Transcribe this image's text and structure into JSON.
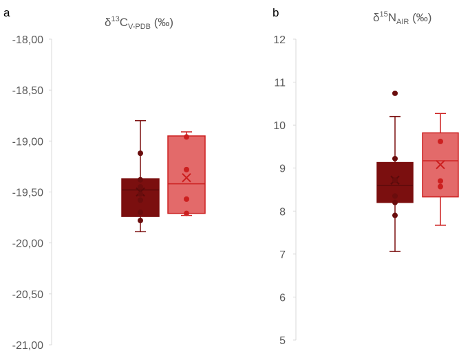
{
  "chart_data": [
    {
      "type": "box",
      "panel_label": "a",
      "title": {
        "main": "δ",
        "sup": "13",
        "element": "C",
        "sub": "V-PDB",
        "unit": " (‰)"
      },
      "ylim": [
        -21.0,
        -18.0
      ],
      "yticks": [
        "-18,00",
        "-18,50",
        "-19,00",
        "-19,50",
        "-20,00",
        "-20,50",
        "-21,00"
      ],
      "ytick_values": [
        -18.0,
        -18.5,
        -19.0,
        -19.5,
        -20.0,
        -20.5,
        -21.0
      ],
      "grid": false,
      "legend": "none",
      "series": [
        {
          "color": "#7b0f0f",
          "min": -19.89,
          "q1": -19.74,
          "median": -19.48,
          "q3": -19.37,
          "max": -18.8,
          "mean": -19.5,
          "points": [
            -19.12,
            -19.38,
            -19.45,
            -19.52,
            -19.58,
            -19.7,
            -19.78
          ]
        },
        {
          "color": "#e36a6a",
          "stroke": "#cc1f1f",
          "min": -19.73,
          "q1": -19.71,
          "median": -19.42,
          "q3": -18.95,
          "max": -18.91,
          "mean": -19.36,
          "points": [
            -18.96,
            -19.28,
            -19.57,
            -19.71
          ]
        }
      ]
    },
    {
      "type": "box",
      "panel_label": "b",
      "title": {
        "main": "δ",
        "sup": "15",
        "element": "N",
        "sub": "AIR",
        "unit": " (‰)"
      },
      "ylim": [
        5,
        12
      ],
      "yticks": [
        "12",
        "11",
        "10",
        "9",
        "8",
        "7",
        "6",
        "5"
      ],
      "ytick_values": [
        12,
        11,
        10,
        9,
        8,
        7,
        6,
        5
      ],
      "grid": false,
      "legend": "none",
      "series": [
        {
          "color": "#7b0f0f",
          "min": 7.06,
          "q1": 8.2,
          "median": 8.6,
          "q3": 9.13,
          "max": 10.2,
          "mean": 8.72,
          "points": [
            10.74,
            9.22,
            8.72,
            8.35,
            8.2,
            7.9
          ]
        },
        {
          "color": "#e36a6a",
          "stroke": "#cc1f1f",
          "min": 7.67,
          "q1": 8.33,
          "median": 9.17,
          "q3": 9.82,
          "max": 10.27,
          "mean": 9.08,
          "points": [
            9.62,
            8.7,
            8.57
          ]
        }
      ]
    }
  ]
}
